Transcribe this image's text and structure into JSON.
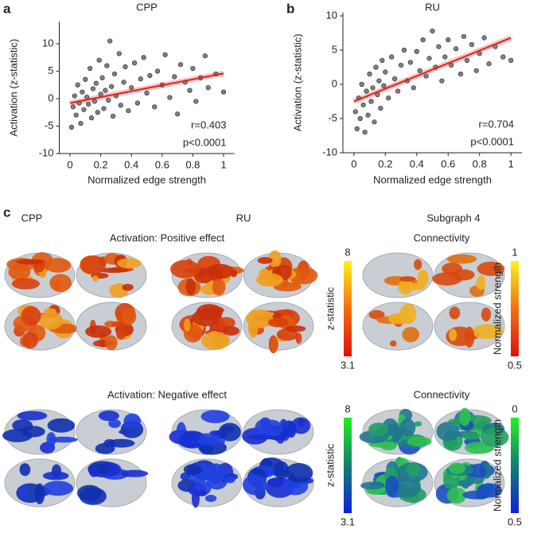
{
  "panel_labels": [
    "a",
    "b",
    "c"
  ],
  "chart_data": [
    {
      "type": "scatter",
      "title": "CPP",
      "x_label": "Normalized edge strength",
      "y_label": "Activation (z-statistic)",
      "color": "#808080",
      "fit_color": "#e0201b",
      "x": [
        0.01,
        0.02,
        0.03,
        0.04,
        0.05,
        0.06,
        0.07,
        0.08,
        0.09,
        0.1,
        0.11,
        0.12,
        0.13,
        0.14,
        0.15,
        0.16,
        0.17,
        0.18,
        0.19,
        0.2,
        0.21,
        0.22,
        0.23,
        0.24,
        0.25,
        0.26,
        0.27,
        0.28,
        0.29,
        0.3,
        0.32,
        0.33,
        0.35,
        0.36,
        0.38,
        0.4,
        0.42,
        0.44,
        0.46,
        0.48,
        0.5,
        0.52,
        0.55,
        0.57,
        0.6,
        0.62,
        0.65,
        0.68,
        0.7,
        0.72,
        0.75,
        0.78,
        0.8,
        0.82,
        0.85,
        0.88,
        0.9,
        0.95,
        1.0
      ],
      "y": [
        -5.2,
        -1.5,
        0.5,
        -3,
        2.5,
        -0.8,
        -4.5,
        1.2,
        -2,
        3.5,
        0.3,
        -1,
        5.5,
        -3.5,
        1.8,
        -0.5,
        2.8,
        -2.5,
        7,
        0.8,
        3.8,
        -1.8,
        1.5,
        6,
        -0.3,
        10.5,
        2.2,
        -3.2,
        4.5,
        0.5,
        8.2,
        -1.2,
        3,
        5.8,
        -2.2,
        2,
        6.5,
        -0.8,
        3.6,
        7.5,
        1,
        4.2,
        -1.5,
        5,
        2.5,
        8,
        0.2,
        4,
        -2.8,
        6.2,
        3,
        1.5,
        5.5,
        -0.5,
        3.8,
        7.8,
        2,
        4.5,
        1.2
      ],
      "fit": {
        "x": [
          0,
          1
        ],
        "y": [
          -0.8,
          4.6
        ]
      },
      "annotations": [
        "r=0.403",
        "p<0.0001"
      ],
      "xlim": [
        -0.07,
        1.07
      ],
      "ylim": [
        -10,
        14
      ],
      "xticks": [
        0,
        0.2,
        0.4,
        0.6,
        0.8,
        1
      ],
      "yticks": [
        -10,
        -5,
        0,
        5,
        10
      ]
    },
    {
      "type": "scatter",
      "title": "RU",
      "x_label": "Normalized edge strength",
      "y_label": "Activation (z-statistic)",
      "color": "#808080",
      "fit_color": "#e0201b",
      "x": [
        0.01,
        0.02,
        0.03,
        0.04,
        0.05,
        0.06,
        0.07,
        0.08,
        0.09,
        0.1,
        0.11,
        0.12,
        0.13,
        0.14,
        0.15,
        0.16,
        0.17,
        0.18,
        0.19,
        0.2,
        0.22,
        0.24,
        0.26,
        0.28,
        0.3,
        0.32,
        0.34,
        0.36,
        0.38,
        0.4,
        0.42,
        0.44,
        0.46,
        0.48,
        0.5,
        0.52,
        0.54,
        0.56,
        0.58,
        0.6,
        0.62,
        0.65,
        0.68,
        0.7,
        0.72,
        0.75,
        0.78,
        0.8,
        0.83,
        0.86,
        0.9,
        0.95,
        1.0
      ],
      "y": [
        -4,
        -6.5,
        -2,
        -5,
        0,
        -3,
        -7,
        -1,
        -4.5,
        1.5,
        -2.5,
        -0.5,
        -5.5,
        2.5,
        -1.5,
        0.5,
        -3.5,
        3.5,
        -0.2,
        1.8,
        -2,
        4,
        0.8,
        -1,
        2.8,
        5,
        0.5,
        3.2,
        -0.5,
        4.8,
        2,
        6.5,
        1.2,
        3.8,
        7.8,
        2.5,
        5.5,
        0.5,
        4,
        6.5,
        2.8,
        5.2,
        1.5,
        7,
        3.5,
        5.8,
        2,
        4.5,
        6.8,
        3,
        5.5,
        4,
        3.5
      ],
      "fit": {
        "x": [
          0,
          1
        ],
        "y": [
          -2.5,
          6.8
        ]
      },
      "annotations": [
        "r=0.704",
        "p<0.0001"
      ],
      "xlim": [
        -0.07,
        1.07
      ],
      "ylim": [
        -10,
        10.5
      ],
      "xticks": [
        0,
        0.2,
        0.4,
        0.6,
        0.8,
        1
      ],
      "yticks": [
        -10,
        -5,
        0,
        5,
        10
      ]
    }
  ],
  "panel_c": {
    "column_titles": [
      "CPP",
      "RU",
      "Subgraph 4"
    ],
    "rows": [
      {
        "left_title": "Activation: Positive effect",
        "right_title": "Connectivity",
        "bars": [
          {
            "label": "z-statistic",
            "top": 8,
            "bottom": 3.1
          },
          {
            "label": "Normalized strength",
            "top": 1,
            "bottom": 0.5
          }
        ]
      },
      {
        "left_title": "Activation: Negative effect",
        "right_title": "Connectivity",
        "bars": [
          {
            "label": "z-statistic",
            "top": 8,
            "bottom": 3.1
          },
          {
            "label": "Normalized strength",
            "top": 0,
            "bottom": 0.5
          }
        ]
      }
    ]
  }
}
